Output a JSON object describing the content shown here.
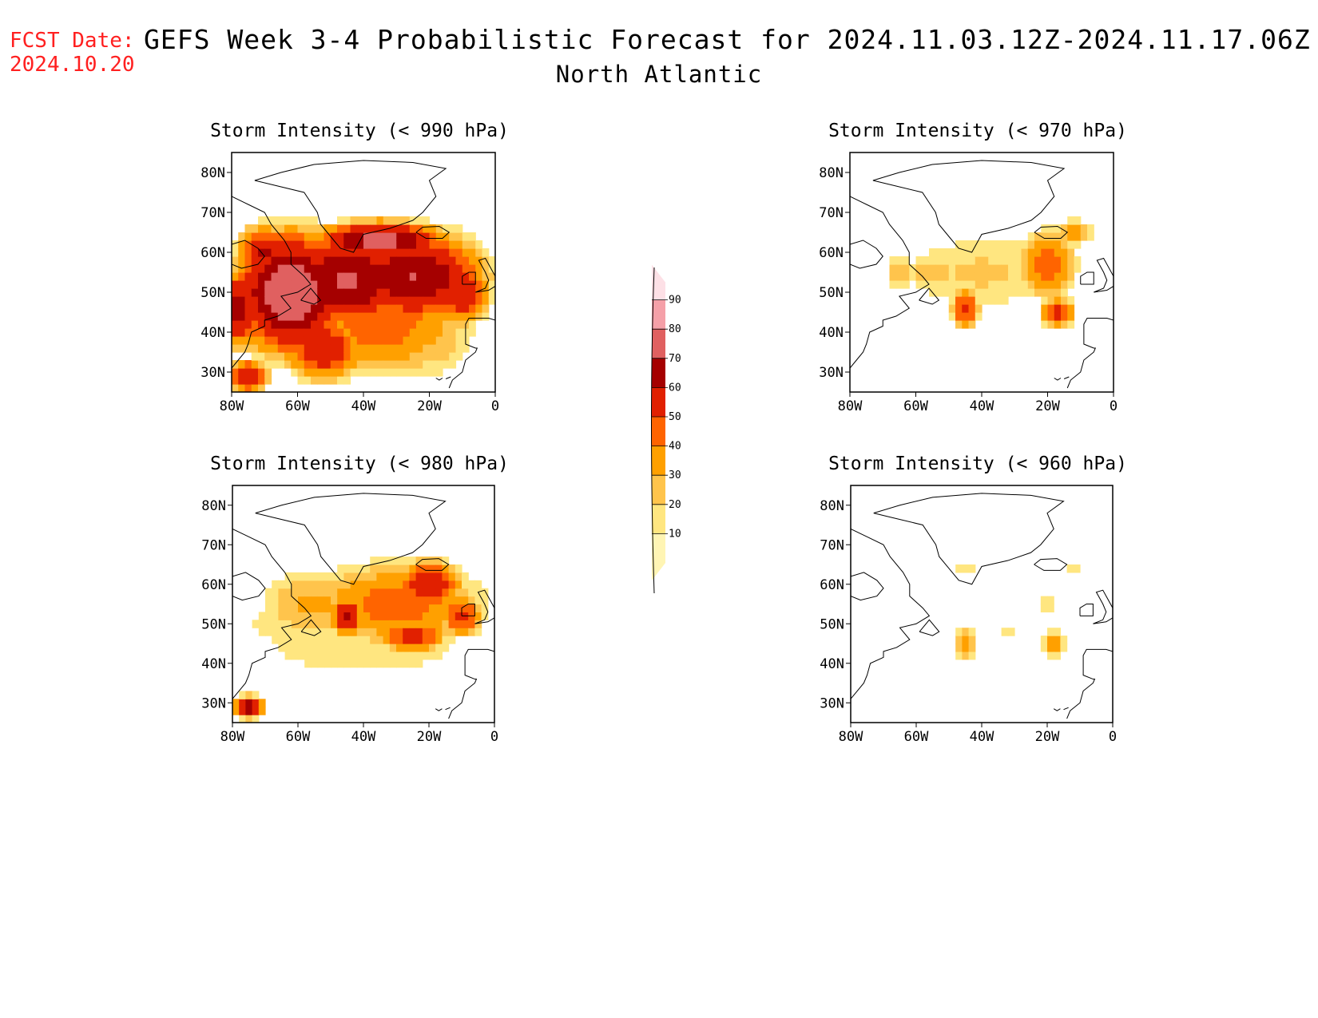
{
  "header": {
    "fcst_label": "FCST Date:",
    "fcst_date": "2024.10.20",
    "title": "GEFS Week 3-4 Probabilistic Forecast for 2024.11.03.12Z-2024.11.17.06Z",
    "region": "North Atlantic"
  },
  "axes": {
    "lon_labels": [
      "80W",
      "60W",
      "40W",
      "20W",
      "0"
    ],
    "lat_labels": [
      "80N",
      "70N",
      "60N",
      "50N",
      "40N",
      "30N"
    ]
  },
  "colorbar": {
    "levels": [
      10,
      20,
      30,
      40,
      50,
      60,
      70,
      80,
      90
    ],
    "colors": [
      "#fff5b4",
      "#ffe680",
      "#ffc44c",
      "#ffa000",
      "#ff6400",
      "#e12000",
      "#a50000",
      "#e06060",
      "#f5a0a8",
      "#fde0e6"
    ]
  },
  "chart_data": [
    {
      "type": "heatmap",
      "title": "Storm Intensity (< 990 hPa)",
      "xlim": [
        -80,
        0
      ],
      "ylim": [
        25,
        85
      ],
      "blobs": [
        {
          "lon": -62,
          "lat": 50,
          "rlon": 18,
          "rlat": 16,
          "v": 78
        },
        {
          "lon": -45,
          "lat": 53,
          "rlon": 20,
          "rlat": 12,
          "v": 72
        },
        {
          "lon": -25,
          "lat": 54,
          "rlon": 22,
          "rlat": 12,
          "v": 70
        },
        {
          "lon": -70,
          "lat": 60,
          "rlon": 8,
          "rlat": 7,
          "v": 62
        },
        {
          "lon": -35,
          "lat": 42,
          "rlon": 25,
          "rlat": 12,
          "v": 45
        },
        {
          "lon": -52,
          "lat": 36,
          "rlon": 12,
          "rlat": 8,
          "v": 60
        },
        {
          "lon": -20,
          "lat": 40,
          "rlon": 12,
          "rlat": 10,
          "v": 30
        },
        {
          "lon": -78,
          "lat": 46,
          "rlon": 8,
          "rlat": 10,
          "v": 65
        },
        {
          "lon": -35,
          "lat": 63,
          "rlon": 20,
          "rlat": 5,
          "v": 75
        },
        {
          "lon": -10,
          "lat": 50,
          "rlon": 8,
          "rlat": 8,
          "v": 60
        },
        {
          "lon": -75,
          "lat": 29,
          "rlon": 6,
          "rlat": 4,
          "v": 62
        }
      ]
    },
    {
      "type": "heatmap",
      "title": "Storm Intensity (< 970 hPa)",
      "xlim": [
        -80,
        0
      ],
      "ylim": [
        25,
        85
      ],
      "blobs": [
        {
          "lon": -40,
          "lat": 55,
          "rlon": 22,
          "rlat": 8,
          "v": 22
        },
        {
          "lon": -20,
          "lat": 57,
          "rlon": 8,
          "rlat": 8,
          "v": 45
        },
        {
          "lon": -45,
          "lat": 46,
          "rlon": 4,
          "rlat": 5,
          "v": 55
        },
        {
          "lon": -17,
          "lat": 45,
          "rlon": 5,
          "rlat": 4,
          "v": 52
        },
        {
          "lon": -55,
          "lat": 55,
          "rlon": 6,
          "rlat": 4,
          "v": 30
        },
        {
          "lon": -65,
          "lat": 55,
          "rlon": 4,
          "rlat": 4,
          "v": 25
        },
        {
          "lon": -12,
          "lat": 65,
          "rlon": 5,
          "rlat": 3,
          "v": 40
        },
        {
          "lon": -30,
          "lat": 60,
          "rlon": 10,
          "rlat": 4,
          "v": 15
        }
      ]
    },
    {
      "type": "heatmap",
      "title": "Storm Intensity (< 980 hPa)",
      "xlim": [
        -80,
        0
      ],
      "ylim": [
        25,
        85
      ],
      "blobs": [
        {
          "lon": -30,
          "lat": 55,
          "rlon": 25,
          "rlat": 10,
          "v": 45
        },
        {
          "lon": -55,
          "lat": 55,
          "rlon": 15,
          "rlat": 8,
          "v": 32
        },
        {
          "lon": -20,
          "lat": 60,
          "rlon": 10,
          "rlat": 6,
          "v": 60
        },
        {
          "lon": -40,
          "lat": 45,
          "rlon": 30,
          "rlat": 8,
          "v": 18
        },
        {
          "lon": -75,
          "lat": 29,
          "rlon": 5,
          "rlat": 3,
          "v": 65
        },
        {
          "lon": -10,
          "lat": 52,
          "rlon": 6,
          "rlat": 5,
          "v": 55
        },
        {
          "lon": -45,
          "lat": 52,
          "rlon": 5,
          "rlat": 5,
          "v": 62
        },
        {
          "lon": -25,
          "lat": 47,
          "rlon": 10,
          "rlat": 4,
          "v": 55
        },
        {
          "lon": -65,
          "lat": 50,
          "rlon": 10,
          "rlat": 5,
          "v": 18
        }
      ]
    },
    {
      "type": "heatmap",
      "title": "Storm Intensity (< 960 hPa)",
      "xlim": [
        -80,
        0
      ],
      "ylim": [
        25,
        85
      ],
      "blobs": [
        {
          "lon": -45,
          "lat": 45,
          "rlon": 3,
          "rlat": 4,
          "v": 32
        },
        {
          "lon": -18,
          "lat": 45,
          "rlon": 3,
          "rlat": 3,
          "v": 35
        },
        {
          "lon": -20,
          "lat": 55,
          "rlon": 4,
          "rlat": 2,
          "v": 15
        },
        {
          "lon": -32,
          "lat": 48,
          "rlon": 2,
          "rlat": 2,
          "v": 12
        },
        {
          "lon": -12,
          "lat": 64,
          "rlon": 3,
          "rlat": 2,
          "v": 14
        },
        {
          "lon": -45,
          "lat": 64,
          "rlon": 3,
          "rlat": 2,
          "v": 14
        }
      ]
    }
  ]
}
